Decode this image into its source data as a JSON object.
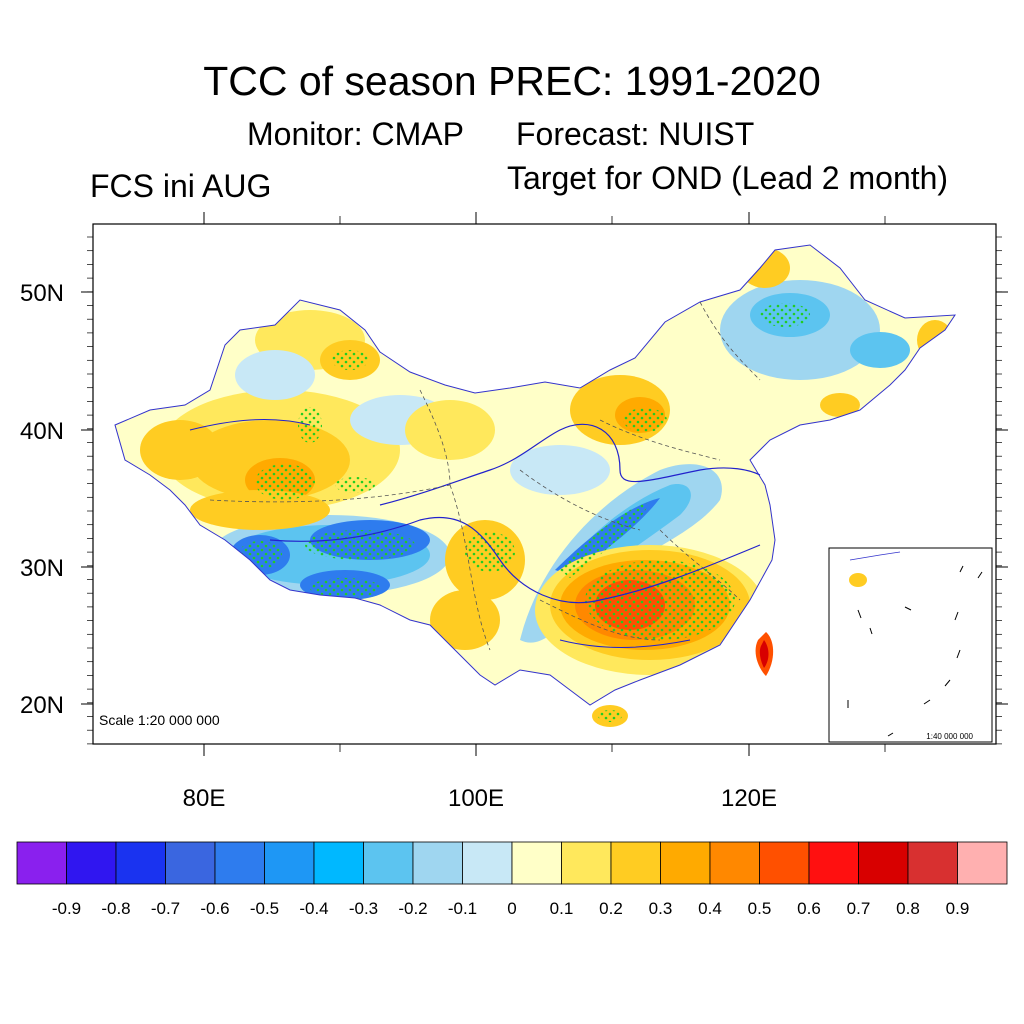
{
  "title": "TCC of season PREC: 1991-2020",
  "subtitle_monitor": "Monitor: CMAP",
  "subtitle_forecast": "Forecast: NUIST",
  "left_label": "FCS ini AUG",
  "right_label": "Target for OND (Lead 2 month)",
  "scale_main": "Scale 1:20 000 000",
  "scale_inset": "1:40 000 000",
  "lat_labels": [
    "50N",
    "40N",
    "30N",
    "20N"
  ],
  "lon_labels": [
    "80E",
    "100E",
    "120E"
  ],
  "colorbar": {
    "labels": [
      "-0.9",
      "-0.8",
      "-0.7",
      "-0.6",
      "-0.5",
      "-0.4",
      "-0.3",
      "-0.2",
      "-0.1",
      "0",
      "0.1",
      "0.2",
      "0.3",
      "0.4",
      "0.5",
      "0.6",
      "0.7",
      "0.8",
      "0.9"
    ],
    "colors": [
      "#8a20ee",
      "#3016f0",
      "#1a33f0",
      "#3a66e0",
      "#2e7cee",
      "#1e97f5",
      "#00b8ff",
      "#5cc4f0",
      "#9fd6f0",
      "#c8e8f6",
      "#ffffc8",
      "#ffe85c",
      "#ffcc22",
      "#ffaa00",
      "#ff8800",
      "#ff5000",
      "#ff1010",
      "#d80000",
      "#d83030",
      "#ffb0b0"
    ]
  },
  "map": {
    "lat_range": [
      17,
      55
    ],
    "lon_range": [
      72,
      138
    ],
    "significance_dots_color": "#22cc22",
    "river_color": "#2222cc",
    "border_color": "#555555"
  }
}
